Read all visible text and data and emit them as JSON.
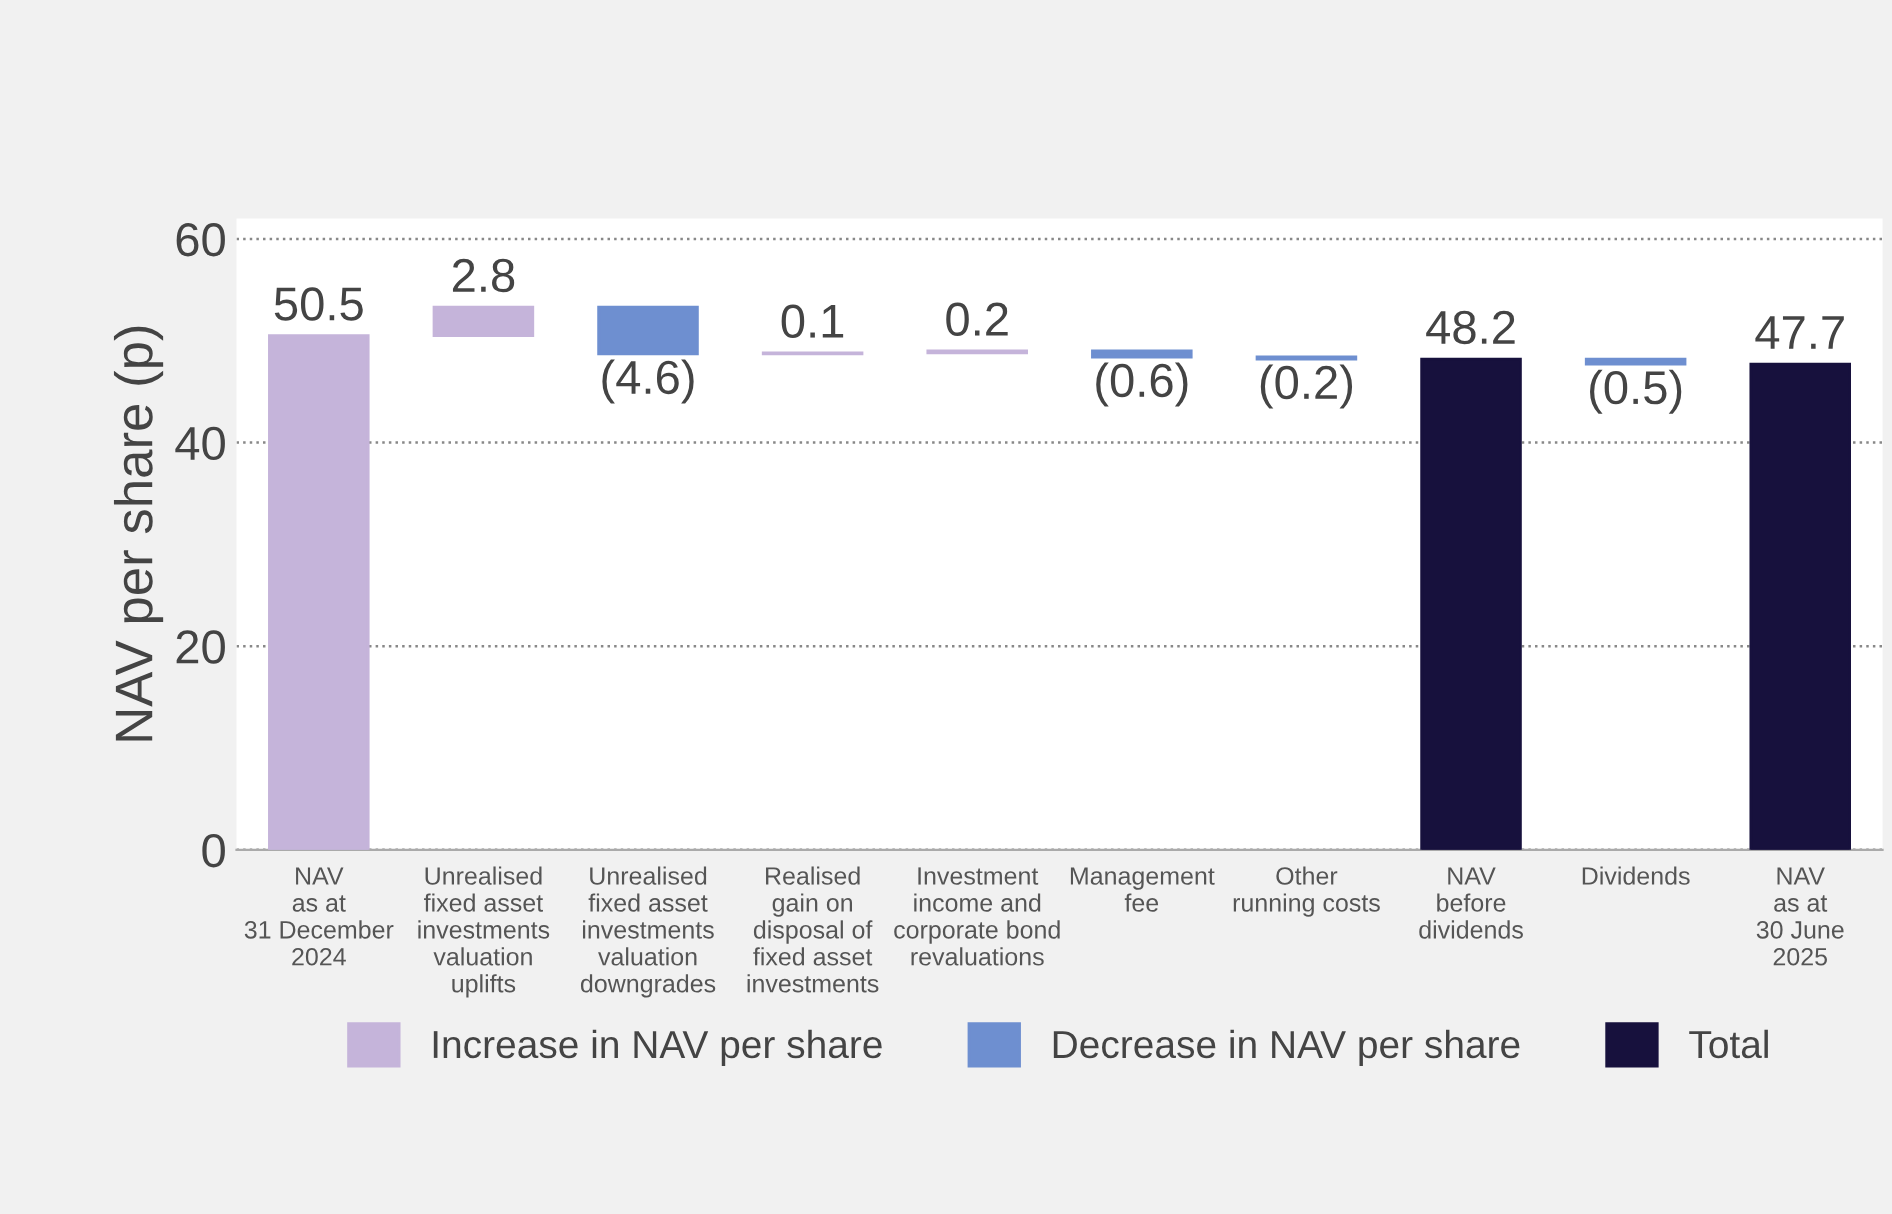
{
  "chart_data": {
    "type": "bar",
    "ylabel": "NAV per share (p)",
    "categories": [
      "NAV\nas at\n31 December\n2024",
      "Unrealised\nfixed asset\ninvestments\nvaluation\nuplifts",
      "Unrealised\nfixed asset\ninvestments\nvaluation\ndowngrades",
      "Realised\ngain on\ndisposal of\nfixed asset\ninvestments",
      "Investment\nincome and\ncorporate bond\nrevaluations",
      "Management\nfee",
      "Other\nrunning costs",
      "NAV\nbefore\ndividends",
      "Dividends",
      "NAV\nas at\n30 June\n2025"
    ],
    "series": [
      {
        "name": "Increase in NAV per share",
        "color": "#c5b4da",
        "values": [
          50.5,
          2.8,
          null,
          0.1,
          0.2,
          null,
          null,
          null,
          null,
          null
        ],
        "base": [
          0,
          50.5,
          null,
          48.7,
          48.8,
          null,
          null,
          null,
          null,
          null
        ],
        "value_labels": [
          "50.5",
          "2.8",
          null,
          "0.1",
          "0.2",
          null,
          null,
          null,
          null,
          null
        ]
      },
      {
        "name": "Decrease in NAV per share",
        "color": "#6e8fd0",
        "values": [
          null,
          null,
          -4.6,
          null,
          null,
          -0.6,
          -0.2,
          null,
          -0.5,
          null
        ],
        "base": [
          null,
          null,
          53.3,
          null,
          null,
          49.0,
          48.4,
          null,
          48.2,
          null
        ],
        "value_labels": [
          null,
          null,
          "(4.6)",
          null,
          null,
          "(0.6)",
          "(0.2)",
          null,
          "(0.5)",
          null
        ]
      },
      {
        "name": "Total",
        "color": "#17113d",
        "values": [
          null,
          null,
          null,
          null,
          null,
          null,
          null,
          48.2,
          null,
          47.7
        ],
        "value_labels": [
          null,
          null,
          null,
          null,
          null,
          null,
          null,
          "48.2",
          null,
          "47.7"
        ]
      }
    ],
    "ylim": [
      0,
      62
    ],
    "yticks": [
      0,
      20,
      40,
      60
    ],
    "grid": "y",
    "line_style": "dotted",
    "legend": "bottom"
  }
}
